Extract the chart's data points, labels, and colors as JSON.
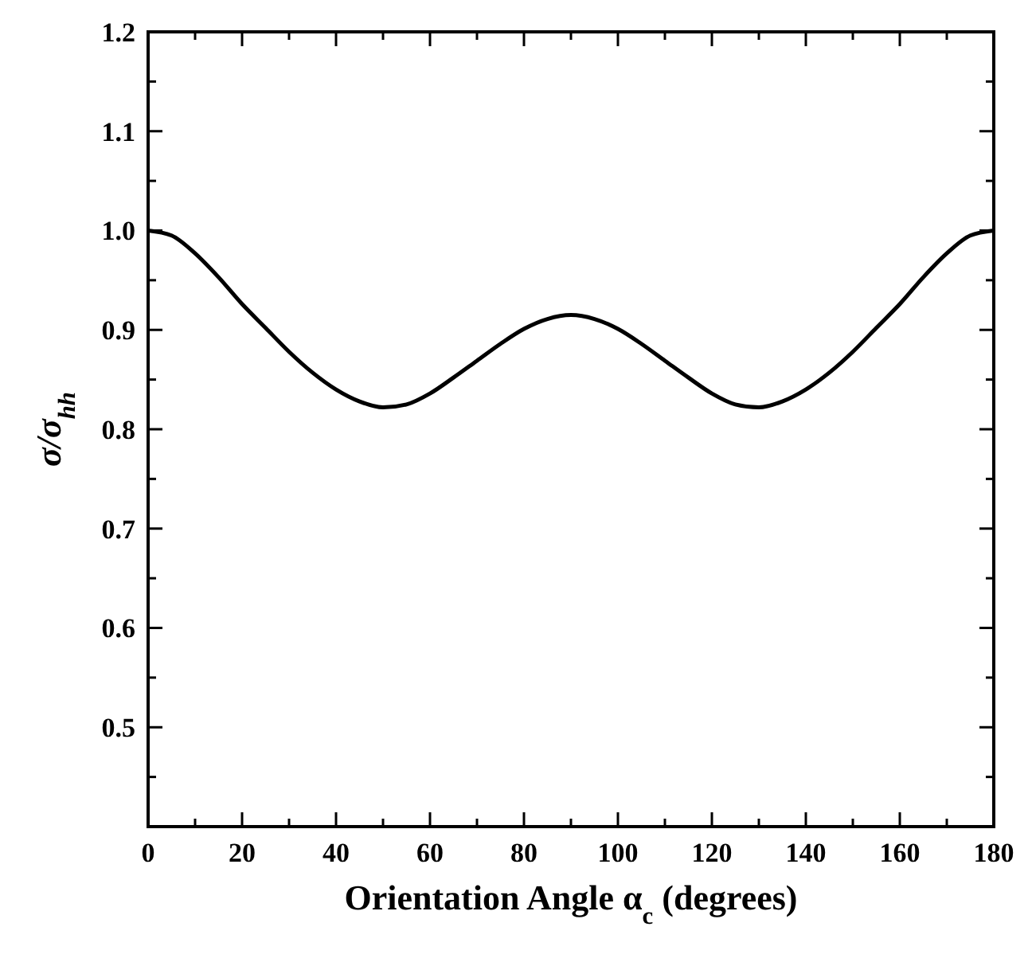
{
  "chart_data": {
    "type": "line",
    "xlabel": "Orientation Angle α$_{c}$ (degrees)",
    "ylabel": "σ/σ$_{hh}$",
    "x": [
      0,
      5,
      10,
      15,
      20,
      25,
      30,
      35,
      40,
      45,
      50,
      55,
      60,
      65,
      70,
      75,
      80,
      85,
      90,
      95,
      100,
      105,
      110,
      115,
      120,
      125,
      130,
      135,
      140,
      145,
      150,
      155,
      160,
      165,
      170,
      175,
      180
    ],
    "series": [
      {
        "color": "#000000",
        "values": [
          1.0,
          0.995,
          0.977,
          0.953,
          0.926,
          0.902,
          0.878,
          0.857,
          0.84,
          0.828,
          0.822,
          0.825,
          0.836,
          0.852,
          0.869,
          0.886,
          0.901,
          0.911,
          0.915,
          0.911,
          0.901,
          0.886,
          0.869,
          0.852,
          0.836,
          0.825,
          0.822,
          0.828,
          0.84,
          0.857,
          0.878,
          0.902,
          0.926,
          0.953,
          0.977,
          0.995,
          1.0
        ]
      }
    ],
    "xlim": [
      0,
      180
    ],
    "xticks": [
      0,
      {
        "value": 10,
        "label": null
      },
      20,
      {
        "value": 30,
        "label": null
      },
      40,
      {
        "value": 50,
        "label": null
      },
      60,
      {
        "value": 70,
        "label": null
      },
      80,
      {
        "value": 90,
        "label": null
      },
      100,
      {
        "value": 110,
        "label": null
      },
      120,
      {
        "value": 130,
        "label": null
      },
      140,
      {
        "value": 150,
        "label": null
      },
      160,
      {
        "value": 170,
        "label": null
      },
      180
    ],
    "ylim": [
      0.4,
      1.2
    ],
    "yticks": [
      {
        "value": 0.45,
        "label": null
      },
      0.5,
      {
        "value": 0.55,
        "label": null
      },
      0.6,
      {
        "value": 0.65,
        "label": null
      },
      0.7,
      {
        "value": 0.75,
        "label": null
      },
      0.8,
      {
        "value": 0.85,
        "label": null
      },
      0.9,
      {
        "value": 0.95,
        "label": null
      },
      {
        "value": 1,
        "label": "1.0"
      },
      {
        "value": 1.05,
        "label": null
      },
      1.1,
      {
        "value": 1.15,
        "label": null
      },
      1.2
    ],
    "grid": false,
    "marker": "none",
    "line_style": "solid"
  }
}
